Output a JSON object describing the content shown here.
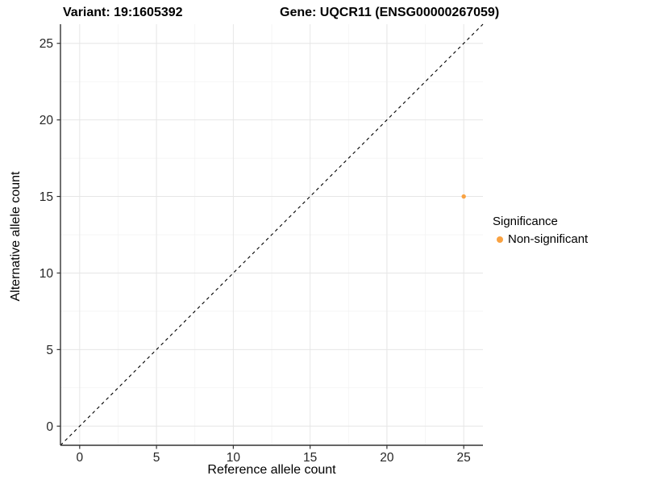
{
  "header": {
    "variant_title": "Variant: 19:1605392",
    "gene_title": "Gene: UQCR11 (ENSG00000267059)"
  },
  "axes": {
    "x_label": "Reference allele count",
    "y_label": "Alternative allele count"
  },
  "legend": {
    "title": "Significance",
    "items": [
      {
        "label": "Non-significant",
        "color": "#F9A242"
      }
    ]
  },
  "chart_data": {
    "type": "scatter",
    "title": "Variant: 19:1605392 | Gene: UQCR11 (ENSG00000267059)",
    "xlabel": "Reference allele count",
    "ylabel": "Alternative allele count",
    "xlim": [
      -1.25,
      26.25
    ],
    "ylim": [
      -1.25,
      26.25
    ],
    "xticks": [
      0,
      5,
      10,
      15,
      20,
      25
    ],
    "yticks": [
      0,
      5,
      10,
      15,
      20,
      25
    ],
    "grid": {
      "major_color": "#e6e6e6",
      "minor_color": "#f2f2f2",
      "background": "#ffffff"
    },
    "axis_line_color": "#333333",
    "identity_line": {
      "style": "dashed",
      "color": "#000000",
      "from": [
        -1.25,
        -1.25
      ],
      "to": [
        26.25,
        26.25
      ]
    },
    "series": [
      {
        "name": "Non-significant",
        "color": "#F9A242",
        "points": [
          {
            "x": 25,
            "y": 15
          }
        ]
      }
    ],
    "legend_title": "Significance",
    "legend_position": "right"
  }
}
